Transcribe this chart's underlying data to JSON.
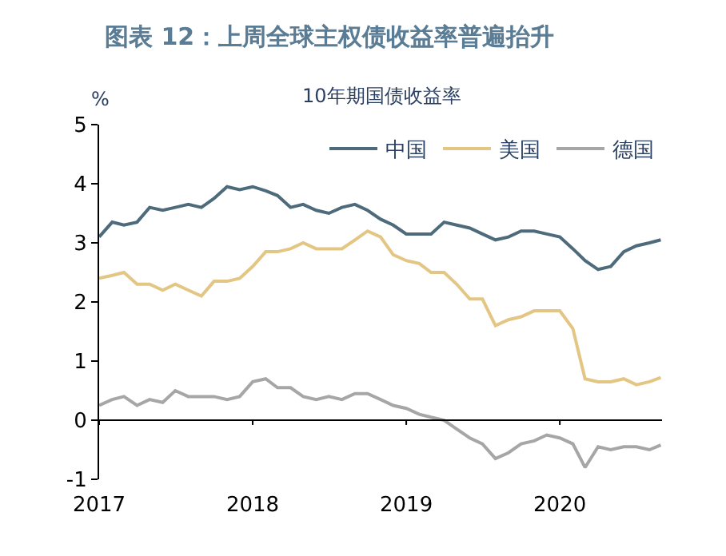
{
  "chart_data": {
    "type": "line",
    "title": "图表 12：上周全球主权债收益率普遍抬升",
    "subtitle": "10年期国债收益率",
    "ylabel": "%",
    "x": [
      "2017-01",
      "2017-02",
      "2017-03",
      "2017-04",
      "2017-05",
      "2017-06",
      "2017-07",
      "2017-08",
      "2017-09",
      "2017-10",
      "2017-11",
      "2017-12",
      "2018-01",
      "2018-02",
      "2018-03",
      "2018-04",
      "2018-05",
      "2018-06",
      "2018-07",
      "2018-08",
      "2018-09",
      "2018-10",
      "2018-11",
      "2018-12",
      "2019-01",
      "2019-02",
      "2019-03",
      "2019-04",
      "2019-05",
      "2019-06",
      "2019-07",
      "2019-08",
      "2019-09",
      "2019-10",
      "2019-11",
      "2019-12",
      "2020-01",
      "2020-02",
      "2020-03",
      "2020-04",
      "2020-05",
      "2020-06",
      "2020-07",
      "2020-08",
      "2020-08-28"
    ],
    "series": [
      {
        "name": "中国",
        "color": "#4e6b7c",
        "values": [
          3.1,
          3.35,
          3.3,
          3.35,
          3.6,
          3.55,
          3.6,
          3.65,
          3.6,
          3.75,
          3.95,
          3.9,
          3.95,
          3.88,
          3.8,
          3.6,
          3.65,
          3.55,
          3.5,
          3.6,
          3.65,
          3.55,
          3.4,
          3.3,
          3.15,
          3.15,
          3.15,
          3.35,
          3.3,
          3.25,
          3.15,
          3.05,
          3.1,
          3.2,
          3.2,
          3.15,
          3.1,
          2.9,
          2.7,
          2.55,
          2.6,
          2.85,
          2.95,
          3.0,
          3.05
        ]
      },
      {
        "name": "美国",
        "color": "#e3c683",
        "values": [
          2.4,
          2.45,
          2.5,
          2.3,
          2.3,
          2.2,
          2.3,
          2.2,
          2.1,
          2.35,
          2.35,
          2.4,
          2.6,
          2.85,
          2.85,
          2.9,
          3.0,
          2.9,
          2.9,
          2.9,
          3.05,
          3.2,
          3.1,
          2.8,
          2.7,
          2.65,
          2.5,
          2.5,
          2.3,
          2.05,
          2.05,
          1.6,
          1.7,
          1.75,
          1.85,
          1.85,
          1.85,
          1.55,
          0.7,
          0.65,
          0.65,
          0.7,
          0.6,
          0.65,
          0.72
        ]
      },
      {
        "name": "德国",
        "color": "#a6a6a6",
        "values": [
          0.25,
          0.35,
          0.4,
          0.25,
          0.35,
          0.3,
          0.5,
          0.4,
          0.4,
          0.4,
          0.35,
          0.4,
          0.65,
          0.7,
          0.55,
          0.55,
          0.4,
          0.35,
          0.4,
          0.35,
          0.45,
          0.45,
          0.35,
          0.25,
          0.2,
          0.1,
          0.05,
          0.0,
          -0.15,
          -0.3,
          -0.4,
          -0.65,
          -0.55,
          -0.4,
          -0.35,
          -0.25,
          -0.3,
          -0.4,
          -0.8,
          -0.45,
          -0.5,
          -0.45,
          -0.45,
          -0.5,
          -0.42
        ]
      }
    ],
    "xlim": [
      "2017-01-01",
      "2020-08-31"
    ],
    "xticks": [
      {
        "value": "2017-01-01",
        "label": "2017"
      },
      {
        "value": "2018-01-01",
        "label": "2018"
      },
      {
        "value": "2019-01-01",
        "label": "2019"
      },
      {
        "value": "2020-01-01",
        "label": "2020"
      }
    ],
    "ylim": [
      -1,
      5
    ],
    "yticks": [
      -1,
      0,
      1,
      2,
      3,
      4,
      5
    ],
    "ref_lines": [
      {
        "axis": "y",
        "value": 0,
        "color": "#000000"
      }
    ],
    "legend": "top right",
    "grid": false,
    "marker": "none",
    "line_style": "solid"
  }
}
